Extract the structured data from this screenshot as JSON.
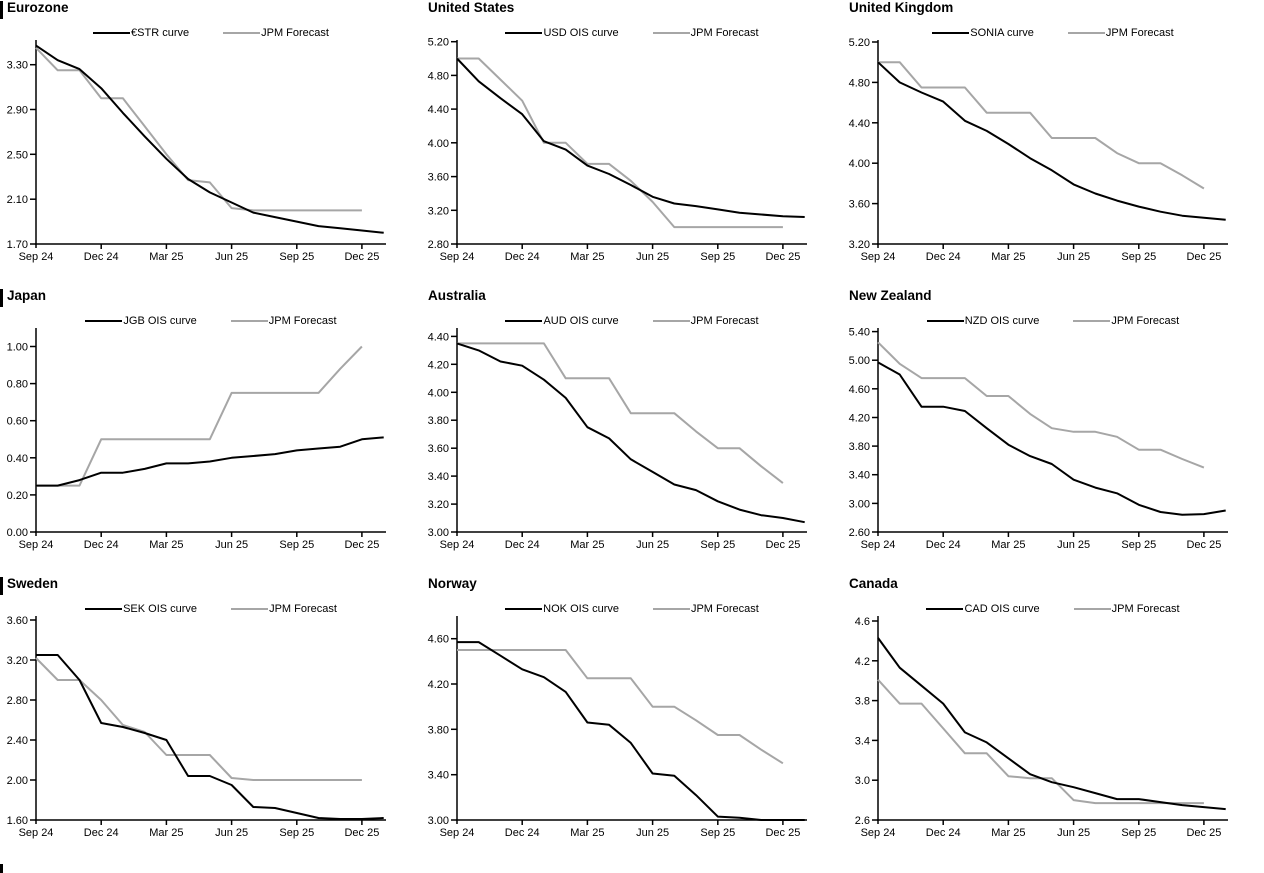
{
  "page": {
    "description": "Grid of nine policy-rate OIS curve charts versus JPM forecasts"
  },
  "chart_data": {
    "type": "line",
    "grid": false,
    "legend_position": "top-center",
    "x_months": [
      "Sep 24",
      "Oct 24",
      "Nov 24",
      "Dec 24",
      "Jan 25",
      "Feb 25",
      "Mar 25",
      "Apr 25",
      "May 25",
      "Jun 25",
      "Jul 25",
      "Aug 25",
      "Sep 25",
      "Oct 25",
      "Nov 25",
      "Dec 25",
      "Jan 26"
    ],
    "x_tick_labels": [
      "Sep 24",
      "Dec 24",
      "Mar 25",
      "Jun 25",
      "Sep 25",
      "Dec 25"
    ],
    "x_tick_positions": [
      0,
      3,
      6,
      9,
      12,
      15
    ],
    "charts": [
      {
        "type": "line",
        "title": "Eurozone",
        "yticks": [
          "1.70",
          "2.10",
          "2.50",
          "2.90",
          "3.30"
        ],
        "ylim": [
          1.7,
          3.52
        ],
        "series": [
          {
            "name": "€STR curve",
            "color": "#000000",
            "values": [
              3.47,
              3.34,
              3.26,
              3.09,
              2.87,
              2.66,
              2.46,
              2.28,
              2.16,
              2.07,
              1.98,
              1.94,
              1.9,
              1.86,
              1.84,
              1.82,
              1.8
            ]
          },
          {
            "name": "JPM Forecast",
            "color": "#a6a6a6",
            "values": [
              3.45,
              3.25,
              3.25,
              3.0,
              3.0,
              2.75,
              2.5,
              2.27,
              2.25,
              2.02,
              2.0,
              2.0,
              2.0,
              2.0,
              2.0,
              2.0,
              null
            ]
          }
        ]
      },
      {
        "type": "line",
        "title": "United States",
        "yticks": [
          "2.80",
          "3.20",
          "3.60",
          "4.00",
          "4.40",
          "4.80",
          "5.20"
        ],
        "ylim": [
          2.8,
          5.22
        ],
        "series": [
          {
            "name": "USD OIS curve",
            "color": "#000000",
            "values": [
              5.0,
              4.73,
              4.53,
              4.34,
              4.02,
              3.92,
              3.73,
              3.63,
              3.5,
              3.36,
              3.28,
              3.25,
              3.21,
              3.17,
              3.15,
              3.13,
              3.12
            ]
          },
          {
            "name": "JPM Forecast",
            "color": "#a6a6a6",
            "values": [
              5.0,
              5.0,
              4.75,
              4.5,
              4.0,
              4.0,
              3.75,
              3.75,
              3.55,
              3.3,
              3.0,
              3.0,
              3.0,
              3.0,
              3.0,
              3.0,
              null
            ]
          }
        ]
      },
      {
        "type": "line",
        "title": "United Kingdom",
        "yticks": [
          "3.20",
          "3.60",
          "4.00",
          "4.40",
          "4.80",
          "5.20"
        ],
        "ylim": [
          3.2,
          5.22
        ],
        "series": [
          {
            "name": "SONIA curve",
            "color": "#000000",
            "values": [
              5.0,
              4.8,
              4.7,
              4.61,
              4.42,
              4.32,
              4.19,
              4.05,
              3.93,
              3.79,
              3.7,
              3.63,
              3.57,
              3.52,
              3.48,
              3.46,
              3.44
            ]
          },
          {
            "name": "JPM Forecast",
            "color": "#a6a6a6",
            "values": [
              5.0,
              5.0,
              4.75,
              4.75,
              4.75,
              4.5,
              4.5,
              4.5,
              4.25,
              4.25,
              4.25,
              4.1,
              4.0,
              4.0,
              3.88,
              3.75,
              null
            ]
          }
        ]
      },
      {
        "type": "line",
        "title": "Japan",
        "yticks": [
          "0.00",
          "0.20",
          "0.40",
          "0.60",
          "0.80",
          "1.00"
        ],
        "ylim": [
          0.0,
          1.1
        ],
        "series": [
          {
            "name": "JGB OIS curve",
            "color": "#000000",
            "values": [
              0.25,
              0.25,
              0.28,
              0.32,
              0.32,
              0.34,
              0.37,
              0.37,
              0.38,
              0.4,
              0.41,
              0.42,
              0.44,
              0.45,
              0.46,
              0.5,
              0.51
            ]
          },
          {
            "name": "JPM Forecast",
            "color": "#a6a6a6",
            "values": [
              0.25,
              0.25,
              0.25,
              0.5,
              0.5,
              0.5,
              0.5,
              0.5,
              0.5,
              0.75,
              0.75,
              0.75,
              0.75,
              0.75,
              0.88,
              1.0,
              null
            ]
          }
        ]
      },
      {
        "type": "line",
        "title": "Australia",
        "yticks": [
          "3.00",
          "3.20",
          "3.40",
          "3.60",
          "3.80",
          "4.00",
          "4.20",
          "4.40"
        ],
        "ylim": [
          3.0,
          4.46
        ],
        "series": [
          {
            "name": "AUD OIS curve",
            "color": "#000000",
            "values": [
              4.35,
              4.3,
              4.22,
              4.19,
              4.09,
              3.96,
              3.75,
              3.67,
              3.52,
              3.43,
              3.34,
              3.3,
              3.22,
              3.16,
              3.12,
              3.1,
              3.07
            ]
          },
          {
            "name": "JPM Forecast",
            "color": "#a6a6a6",
            "values": [
              4.35,
              4.35,
              4.35,
              4.35,
              4.35,
              4.1,
              4.1,
              4.1,
              3.85,
              3.85,
              3.85,
              3.72,
              3.6,
              3.6,
              3.47,
              3.35,
              null
            ]
          }
        ]
      },
      {
        "type": "line",
        "title": "New Zealand",
        "yticks": [
          "2.60",
          "3.00",
          "3.40",
          "3.80",
          "4.20",
          "4.60",
          "5.00",
          "5.40"
        ],
        "ylim": [
          2.6,
          5.45
        ],
        "series": [
          {
            "name": "NZD OIS curve",
            "color": "#000000",
            "values": [
              4.97,
              4.8,
              4.35,
              4.35,
              4.29,
              4.05,
              3.82,
              3.66,
              3.55,
              3.33,
              3.22,
              3.14,
              2.98,
              2.88,
              2.84,
              2.85,
              2.9
            ]
          },
          {
            "name": "JPM Forecast",
            "color": "#a6a6a6",
            "values": [
              5.25,
              4.95,
              4.75,
              4.75,
              4.75,
              4.5,
              4.5,
              4.25,
              4.05,
              4.0,
              4.0,
              3.93,
              3.75,
              3.75,
              3.62,
              3.5,
              null
            ]
          }
        ]
      },
      {
        "type": "line",
        "title": "Sweden",
        "yticks": [
          "1.60",
          "2.00",
          "2.40",
          "2.80",
          "3.20",
          "3.60"
        ],
        "ylim": [
          1.6,
          3.64
        ],
        "series": [
          {
            "name": "SEK OIS curve",
            "color": "#000000",
            "values": [
              3.25,
              3.25,
              3.0,
              2.57,
              2.53,
              2.47,
              2.4,
              2.04,
              2.04,
              1.95,
              1.73,
              1.72,
              1.67,
              1.62,
              1.61,
              1.61,
              1.62
            ]
          },
          {
            "name": "JPM Forecast",
            "color": "#a6a6a6",
            "values": [
              3.22,
              3.0,
              3.0,
              2.8,
              2.55,
              2.48,
              2.25,
              2.25,
              2.25,
              2.02,
              2.0,
              2.0,
              2.0,
              2.0,
              2.0,
              2.0,
              null
            ]
          }
        ]
      },
      {
        "type": "line",
        "title": "Norway",
        "yticks": [
          "3.00",
          "3.40",
          "3.80",
          "4.20",
          "4.60"
        ],
        "ylim": [
          3.0,
          4.8
        ],
        "series": [
          {
            "name": "NOK OIS curve",
            "color": "#000000",
            "values": [
              4.57,
              4.57,
              4.45,
              4.33,
              4.26,
              4.13,
              3.86,
              3.84,
              3.68,
              3.41,
              3.39,
              3.22,
              3.03,
              3.02,
              3.0,
              3.0,
              3.0
            ]
          },
          {
            "name": "JPM Forecast",
            "color": "#a6a6a6",
            "values": [
              4.5,
              4.5,
              4.5,
              4.5,
              4.5,
              4.5,
              4.25,
              4.25,
              4.25,
              4.0,
              4.0,
              3.88,
              3.75,
              3.75,
              3.62,
              3.5,
              null
            ]
          }
        ]
      },
      {
        "type": "line",
        "title": "Canada",
        "yticks": [
          "2.6",
          "3.0",
          "3.4",
          "3.8",
          "4.2",
          "4.6"
        ],
        "ylim": [
          2.6,
          4.65
        ],
        "series": [
          {
            "name": "CAD OIS curve",
            "color": "#000000",
            "values": [
              4.43,
              4.13,
              3.95,
              3.77,
              3.48,
              3.38,
              3.22,
              3.06,
              2.98,
              2.93,
              2.87,
              2.81,
              2.81,
              2.78,
              2.75,
              2.73,
              2.71
            ]
          },
          {
            "name": "JPM Forecast",
            "color": "#a6a6a6",
            "values": [
              4.01,
              3.77,
              3.77,
              3.52,
              3.27,
              3.27,
              3.04,
              3.02,
              3.02,
              2.8,
              2.77,
              2.77,
              2.77,
              2.77,
              2.77,
              2.77,
              null
            ]
          }
        ]
      }
    ]
  }
}
